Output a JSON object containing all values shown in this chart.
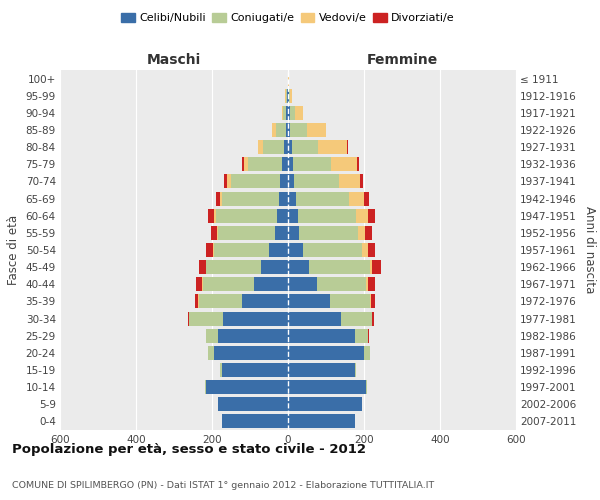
{
  "age_groups": [
    "0-4",
    "5-9",
    "10-14",
    "15-19",
    "20-24",
    "25-29",
    "30-34",
    "35-39",
    "40-44",
    "45-49",
    "50-54",
    "55-59",
    "60-64",
    "65-69",
    "70-74",
    "75-79",
    "80-84",
    "85-89",
    "90-94",
    "95-99",
    "100+"
  ],
  "birth_years": [
    "2007-2011",
    "2002-2006",
    "1997-2001",
    "1992-1996",
    "1987-1991",
    "1982-1986",
    "1977-1981",
    "1972-1976",
    "1967-1971",
    "1962-1966",
    "1957-1961",
    "1952-1956",
    "1947-1951",
    "1942-1946",
    "1937-1941",
    "1932-1936",
    "1927-1931",
    "1922-1926",
    "1917-1921",
    "1912-1916",
    "≤ 1911"
  ],
  "male": {
    "celibi": [
      175,
      185,
      215,
      175,
      195,
      185,
      170,
      120,
      90,
      70,
      50,
      35,
      30,
      25,
      20,
      15,
      10,
      6,
      4,
      2,
      1
    ],
    "coniugati": [
      0,
      0,
      3,
      5,
      15,
      30,
      90,
      115,
      135,
      145,
      145,
      150,
      160,
      150,
      130,
      90,
      55,
      25,
      8,
      3,
      0
    ],
    "vedovi": [
      0,
      0,
      0,
      0,
      1,
      1,
      1,
      1,
      2,
      2,
      3,
      3,
      5,
      5,
      10,
      10,
      15,
      10,
      5,
      2,
      0
    ],
    "divorziati": [
      0,
      0,
      0,
      0,
      0,
      1,
      3,
      10,
      16,
      18,
      18,
      15,
      15,
      10,
      8,
      5,
      0,
      0,
      0,
      0,
      0
    ]
  },
  "female": {
    "nubili": [
      175,
      195,
      205,
      175,
      200,
      175,
      140,
      110,
      75,
      55,
      40,
      28,
      25,
      20,
      15,
      12,
      10,
      6,
      4,
      2,
      1
    ],
    "coniugate": [
      0,
      0,
      3,
      5,
      15,
      35,
      80,
      105,
      130,
      160,
      155,
      155,
      155,
      140,
      120,
      100,
      70,
      45,
      15,
      3,
      0
    ],
    "vedove": [
      0,
      0,
      0,
      0,
      1,
      1,
      2,
      3,
      5,
      5,
      15,
      20,
      30,
      40,
      55,
      70,
      75,
      50,
      20,
      5,
      1
    ],
    "divorziate": [
      0,
      0,
      0,
      0,
      0,
      2,
      5,
      12,
      18,
      25,
      20,
      18,
      18,
      12,
      8,
      5,
      2,
      0,
      0,
      0,
      0
    ]
  },
  "colors": {
    "celibi": "#3a6ea8",
    "coniugati": "#b8cc96",
    "vedovi": "#f5c97a",
    "divorziati": "#cc2222"
  },
  "xlim": 600,
  "title": "Popolazione per età, sesso e stato civile - 2012",
  "subtitle": "COMUNE DI SPILIMBERGO (PN) - Dati ISTAT 1° gennaio 2012 - Elaborazione TUTTITALIA.IT",
  "ylabel_left": "Fasce di età",
  "ylabel_right": "Anni di nascita",
  "xlabel_left": "Maschi",
  "xlabel_right": "Femmine"
}
